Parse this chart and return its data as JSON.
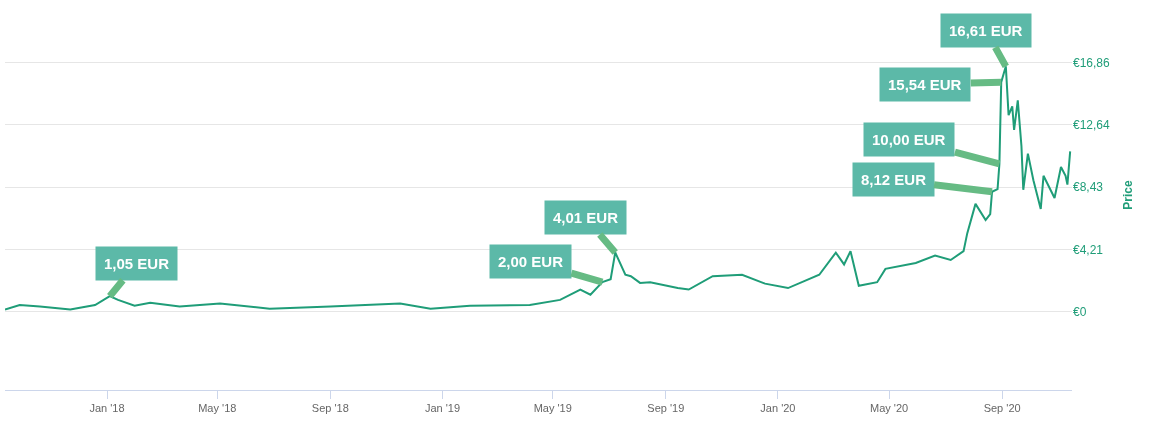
{
  "chart_data": {
    "type": "line",
    "ylabel": "Price",
    "x": [
      "2017-09-12",
      "2017-09-28",
      "2017-10-20",
      "2017-11-22",
      "2017-12-19",
      "2018-01-04",
      "2018-01-13",
      "2018-01-31",
      "2018-02-17",
      "2018-03-21",
      "2018-05-04",
      "2018-06-27",
      "2018-09-01",
      "2018-11-16",
      "2018-12-19",
      "2019-01-31",
      "2019-04-06",
      "2019-05-09",
      "2019-05-31",
      "2019-06-11",
      "2019-06-24",
      "2019-07-03",
      "2019-07-08",
      "2019-07-19",
      "2019-07-25",
      "2019-08-04",
      "2019-08-15",
      "2019-09-14",
      "2019-09-26",
      "2019-10-22",
      "2019-11-23",
      "2019-12-18",
      "2020-01-12",
      "2020-02-15",
      "2020-03-04",
      "2020-03-13",
      "2020-03-20",
      "2020-03-29",
      "2020-04-18",
      "2020-04-27",
      "2020-05-30",
      "2020-06-20",
      "2020-07-07",
      "2020-07-21",
      "2020-07-25",
      "2020-08-03",
      "2020-08-14",
      "2020-08-19",
      "2020-08-21",
      "2020-08-27",
      "2020-08-29",
      "2020-08-31",
      "2020-09-05",
      "2020-09-08",
      "2020-09-12",
      "2020-09-14",
      "2020-09-18",
      "2020-09-22",
      "2020-09-24",
      "2020-09-29",
      "2020-10-05",
      "2020-10-13",
      "2020-10-16",
      "2020-10-28",
      "2020-11-04",
      "2020-11-09",
      "2020-11-11",
      "2020-11-14"
    ],
    "series": [
      {
        "color": "#1f9d78",
        "values": [
          0.15,
          0.45,
          0.35,
          0.15,
          0.45,
          1.05,
          0.8,
          0.4,
          0.6,
          0.35,
          0.55,
          0.2,
          0.35,
          0.55,
          0.2,
          0.4,
          0.45,
          0.8,
          1.5,
          1.15,
          2.0,
          2.2,
          4.01,
          2.5,
          2.4,
          1.95,
          2.0,
          1.6,
          1.5,
          2.4,
          2.5,
          1.9,
          1.6,
          2.5,
          4.0,
          3.2,
          4.1,
          1.75,
          2.0,
          2.9,
          3.3,
          3.8,
          3.5,
          4.1,
          5.3,
          7.3,
          6.2,
          6.6,
          8.12,
          8.3,
          10.0,
          15.54,
          16.61,
          13.3,
          13.9,
          12.3,
          14.3,
          11.2,
          8.25,
          10.7,
          8.9,
          6.95,
          9.2,
          7.7,
          9.8,
          9.2,
          8.6,
          10.85
        ]
      }
    ],
    "xlim": [
      "2017-09-12",
      "2020-11-16"
    ],
    "xticks": [
      {
        "value": "2018-01-01",
        "label": "Jan '18"
      },
      {
        "value": "2018-05-01",
        "label": "May '18"
      },
      {
        "value": "2018-09-01",
        "label": "Sep '18"
      },
      {
        "value": "2019-01-01",
        "label": "Jan '19"
      },
      {
        "value": "2019-05-01",
        "label": "May '19"
      },
      {
        "value": "2019-09-01",
        "label": "Sep '19"
      },
      {
        "value": "2020-01-01",
        "label": "Jan '20"
      },
      {
        "value": "2020-05-01",
        "label": "May '20"
      },
      {
        "value": "2020-09-01",
        "label": "Sep '20"
      }
    ],
    "ylim": [
      -5.3,
      21.1
    ],
    "yticks": [
      {
        "value": 0,
        "label": "€0"
      },
      {
        "value": 4.21,
        "label": "€4,21"
      },
      {
        "value": 8.43,
        "label": "€8,43"
      },
      {
        "value": 12.64,
        "label": "€12,64"
      },
      {
        "value": 16.86,
        "label": "€16,86"
      }
    ],
    "grid": "y",
    "marker": "none",
    "line_style": "solid",
    "annotations": [
      {
        "text": "1,05 EUR",
        "x": "2018-01-04",
        "y": 1.05
      },
      {
        "text": "2,00 EUR",
        "x": "2019-06-24",
        "y": 2.0
      },
      {
        "text": "4,01 EUR",
        "x": "2019-07-08",
        "y": 4.01
      },
      {
        "text": "8,12 EUR",
        "x": "2020-08-21",
        "y": 8.12
      },
      {
        "text": "10,00 EUR",
        "x": "2020-08-29",
        "y": 10.0
      },
      {
        "text": "15,54 EUR",
        "x": "2020-08-31",
        "y": 15.54
      },
      {
        "text": "16,61 EUR",
        "x": "2020-09-05",
        "y": 16.61
      }
    ]
  }
}
